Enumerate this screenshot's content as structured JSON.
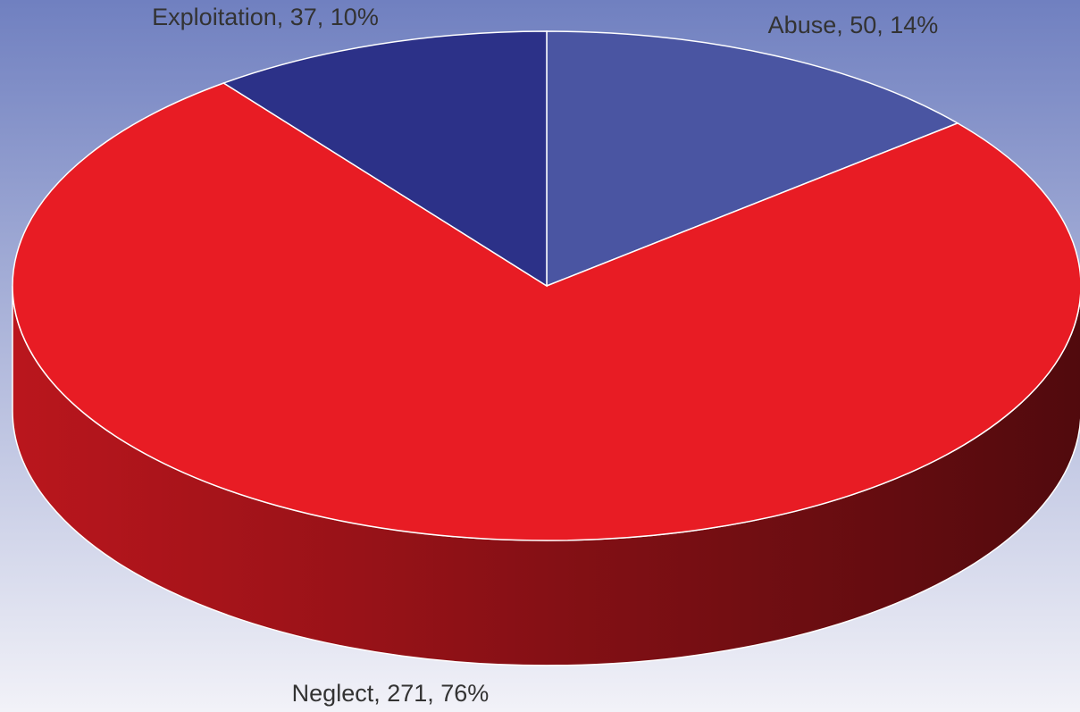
{
  "chart_data": {
    "type": "pie3d",
    "values": [
      50,
      271,
      37
    ],
    "value_labels": [
      "Abuse, 50, 14%",
      "Neglect, 271, 76%",
      "Exploitation, 37, 10%"
    ],
    "colors": [
      "#4a55a2",
      "#e81c24",
      "#2c3188"
    ]
  }
}
